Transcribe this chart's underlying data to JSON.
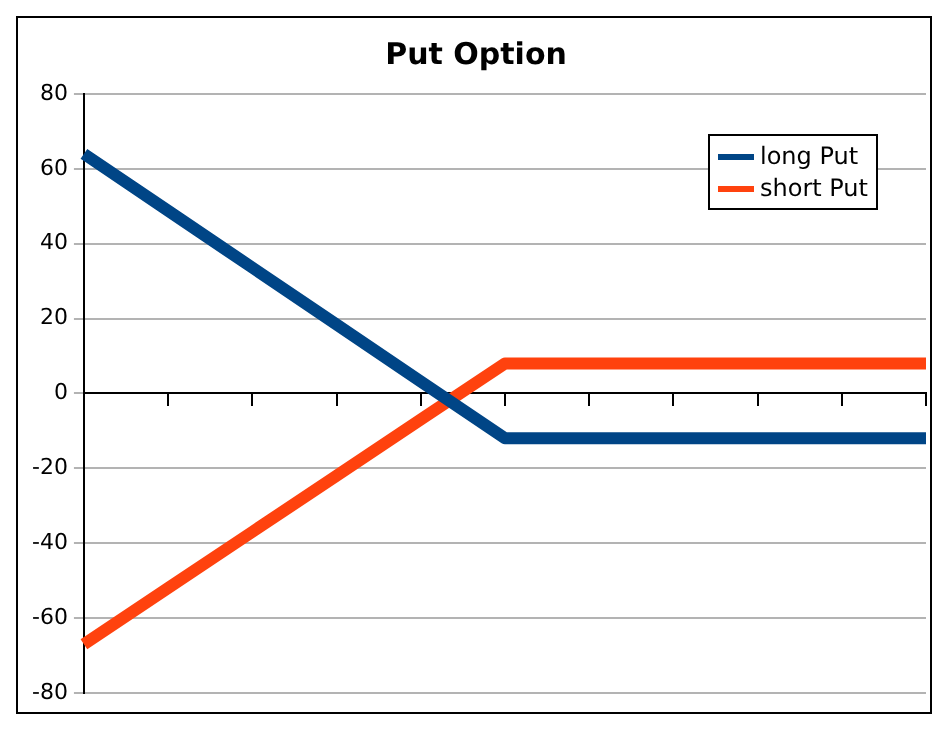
{
  "chart_data": {
    "type": "line",
    "title": "Put Option",
    "categories": [
      null,
      null,
      null,
      null,
      null,
      null,
      null,
      null,
      null,
      null,
      null
    ],
    "series": [
      {
        "name": "long Put",
        "color": "#004586",
        "values": [
          64,
          48.8,
          33.6,
          18.4,
          3.2,
          -12,
          -12,
          -12,
          -12,
          -12,
          -12
        ]
      },
      {
        "name": "short Put",
        "color": "#ff420e",
        "values": [
          -67,
          -52,
          -37,
          -22,
          -7,
          8,
          8,
          8,
          8,
          8,
          8
        ]
      }
    ],
    "ylim": [
      -80,
      80
    ],
    "yticks": [
      -80,
      -60,
      -40,
      -20,
      0,
      20,
      40,
      60,
      80
    ],
    "grid": "y",
    "legend": "top right",
    "tick_labels": "y",
    "marker": "none",
    "line_style": "solid"
  }
}
